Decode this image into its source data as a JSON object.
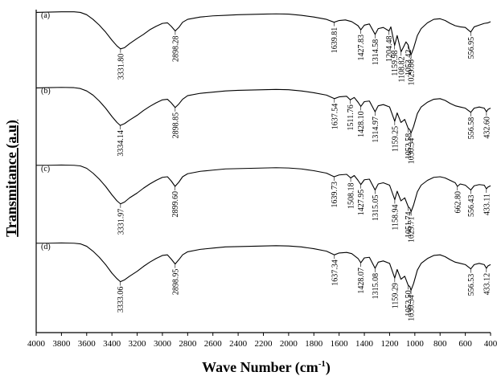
{
  "chart_data": {
    "type": "line",
    "xlabel": "Wave Number (cm",
    "xlabel_sup": "-1",
    "xlabel_end": ")",
    "ylabel": "Transmitance (a.u)",
    "xlim": [
      4000,
      400
    ],
    "x_reversed": true,
    "x_ticks": [
      4000,
      3800,
      3600,
      3400,
      3200,
      3000,
      2800,
      2600,
      2400,
      2200,
      2000,
      1800,
      1600,
      1400,
      1200,
      1000,
      800,
      600,
      400
    ],
    "ylim": [
      0,
      1
    ],
    "y_ticks_shown": false,
    "grid": false,
    "series": [
      {
        "name": "(a)",
        "points": [
          [
            4000,
            0.98
          ],
          [
            3900,
            0.985
          ],
          [
            3800,
            0.99
          ],
          [
            3700,
            0.99
          ],
          [
            3650,
            0.98
          ],
          [
            3600,
            0.94
          ],
          [
            3550,
            0.86
          ],
          [
            3500,
            0.76
          ],
          [
            3450,
            0.64
          ],
          [
            3400,
            0.5
          ],
          [
            3360,
            0.4
          ],
          [
            3331.8,
            0.35
          ],
          [
            3300,
            0.37
          ],
          [
            3260,
            0.44
          ],
          [
            3200,
            0.53
          ],
          [
            3150,
            0.6
          ],
          [
            3100,
            0.68
          ],
          [
            3050,
            0.74
          ],
          [
            3000,
            0.79
          ],
          [
            2960,
            0.8
          ],
          [
            2930,
            0.74
          ],
          [
            2898.28,
            0.66
          ],
          [
            2870,
            0.72
          ],
          [
            2840,
            0.81
          ],
          [
            2800,
            0.86
          ],
          [
            2700,
            0.9
          ],
          [
            2600,
            0.92
          ],
          [
            2500,
            0.93
          ],
          [
            2400,
            0.94
          ],
          [
            2300,
            0.945
          ],
          [
            2200,
            0.95
          ],
          [
            2100,
            0.955
          ],
          [
            2000,
            0.95
          ],
          [
            1900,
            0.93
          ],
          [
            1800,
            0.9
          ],
          [
            1700,
            0.86
          ],
          [
            1639.81,
            0.81
          ],
          [
            1600,
            0.84
          ],
          [
            1550,
            0.85
          ],
          [
            1500,
            0.82
          ],
          [
            1450,
            0.75
          ],
          [
            1427.83,
            0.68
          ],
          [
            1400,
            0.76
          ],
          [
            1360,
            0.78
          ],
          [
            1314.58,
            0.6
          ],
          [
            1290,
            0.7
          ],
          [
            1250,
            0.72
          ],
          [
            1204.48,
            0.66
          ],
          [
            1190,
            0.73
          ],
          [
            1159.98,
            0.41
          ],
          [
            1140,
            0.58
          ],
          [
            1108.82,
            0.3
          ],
          [
            1090,
            0.38
          ],
          [
            1070,
            0.47
          ],
          [
            1053.42,
            0.42
          ],
          [
            1040,
            0.3
          ],
          [
            1029.86,
            0.25
          ],
          [
            1010,
            0.36
          ],
          [
            980,
            0.58
          ],
          [
            950,
            0.7
          ],
          [
            900,
            0.8
          ],
          [
            850,
            0.86
          ],
          [
            800,
            0.87
          ],
          [
            760,
            0.84
          ],
          [
            720,
            0.79
          ],
          [
            680,
            0.75
          ],
          [
            640,
            0.73
          ],
          [
            600,
            0.72
          ],
          [
            556.95,
            0.64
          ],
          [
            530,
            0.73
          ],
          [
            490,
            0.76
          ],
          [
            450,
            0.79
          ],
          [
            420,
            0.8
          ],
          [
            400,
            0.82
          ]
        ],
        "peak_labels": [
          "3331.80",
          "2898.28",
          "1639.81",
          "1427.83",
          "1314.58",
          "1204.48",
          "1159.98",
          "1108.82",
          "1053.42",
          "1029.86",
          "556.95"
        ]
      },
      {
        "name": "(b)",
        "points": [
          [
            4000,
            0.98
          ],
          [
            3900,
            0.985
          ],
          [
            3800,
            0.99
          ],
          [
            3700,
            0.985
          ],
          [
            3650,
            0.97
          ],
          [
            3600,
            0.93
          ],
          [
            3550,
            0.86
          ],
          [
            3500,
            0.76
          ],
          [
            3450,
            0.64
          ],
          [
            3400,
            0.5
          ],
          [
            3360,
            0.4
          ],
          [
            3334.14,
            0.35
          ],
          [
            3300,
            0.38
          ],
          [
            3260,
            0.44
          ],
          [
            3200,
            0.52
          ],
          [
            3150,
            0.6
          ],
          [
            3100,
            0.67
          ],
          [
            3050,
            0.73
          ],
          [
            3000,
            0.78
          ],
          [
            2960,
            0.79
          ],
          [
            2930,
            0.73
          ],
          [
            2898.85,
            0.65
          ],
          [
            2870,
            0.71
          ],
          [
            2840,
            0.79
          ],
          [
            2800,
            0.85
          ],
          [
            2700,
            0.89
          ],
          [
            2600,
            0.91
          ],
          [
            2500,
            0.93
          ],
          [
            2400,
            0.94
          ],
          [
            2300,
            0.945
          ],
          [
            2200,
            0.95
          ],
          [
            2100,
            0.955
          ],
          [
            2000,
            0.95
          ],
          [
            1900,
            0.93
          ],
          [
            1800,
            0.9
          ],
          [
            1700,
            0.86
          ],
          [
            1637.54,
            0.8
          ],
          [
            1600,
            0.83
          ],
          [
            1540,
            0.84
          ],
          [
            1511.76,
            0.78
          ],
          [
            1480,
            0.82
          ],
          [
            1450,
            0.74
          ],
          [
            1428.1,
            0.67
          ],
          [
            1400,
            0.75
          ],
          [
            1360,
            0.76
          ],
          [
            1314.97,
            0.58
          ],
          [
            1290,
            0.68
          ],
          [
            1250,
            0.7
          ],
          [
            1200,
            0.66
          ],
          [
            1159.25,
            0.42
          ],
          [
            1140,
            0.56
          ],
          [
            1110,
            0.4
          ],
          [
            1080,
            0.45
          ],
          [
            1052.58,
            0.3
          ],
          [
            1040,
            0.28
          ],
          [
            1030.34,
            0.22
          ],
          [
            1010,
            0.33
          ],
          [
            980,
            0.55
          ],
          [
            950,
            0.66
          ],
          [
            900,
            0.74
          ],
          [
            850,
            0.79
          ],
          [
            800,
            0.8
          ],
          [
            760,
            0.77
          ],
          [
            720,
            0.72
          ],
          [
            680,
            0.68
          ],
          [
            640,
            0.66
          ],
          [
            600,
            0.64
          ],
          [
            556.58,
            0.57
          ],
          [
            530,
            0.64
          ],
          [
            490,
            0.66
          ],
          [
            450,
            0.64
          ],
          [
            432.6,
            0.58
          ],
          [
            420,
            0.62
          ],
          [
            400,
            0.64
          ]
        ],
        "peak_labels": [
          "3334.14",
          "2898.85",
          "1637.54",
          "1511.76",
          "1428.10",
          "1314.97",
          "1159.25",
          "1052.58",
          "1030.34",
          "556.58",
          "432.60"
        ]
      },
      {
        "name": "(c)",
        "points": [
          [
            4000,
            0.99
          ],
          [
            3900,
            0.99
          ],
          [
            3800,
            0.995
          ],
          [
            3700,
            0.99
          ],
          [
            3650,
            0.98
          ],
          [
            3600,
            0.94
          ],
          [
            3550,
            0.86
          ],
          [
            3500,
            0.76
          ],
          [
            3450,
            0.64
          ],
          [
            3400,
            0.5
          ],
          [
            3360,
            0.4
          ],
          [
            3331.97,
            0.35
          ],
          [
            3300,
            0.38
          ],
          [
            3260,
            0.45
          ],
          [
            3200,
            0.53
          ],
          [
            3150,
            0.61
          ],
          [
            3100,
            0.68
          ],
          [
            3050,
            0.74
          ],
          [
            3000,
            0.79
          ],
          [
            2960,
            0.8
          ],
          [
            2930,
            0.73
          ],
          [
            2899.6,
            0.64
          ],
          [
            2870,
            0.71
          ],
          [
            2840,
            0.8
          ],
          [
            2800,
            0.85
          ],
          [
            2700,
            0.89
          ],
          [
            2600,
            0.91
          ],
          [
            2500,
            0.93
          ],
          [
            2400,
            0.935
          ],
          [
            2300,
            0.94
          ],
          [
            2200,
            0.945
          ],
          [
            2100,
            0.95
          ],
          [
            2000,
            0.945
          ],
          [
            1900,
            0.93
          ],
          [
            1800,
            0.9
          ],
          [
            1700,
            0.86
          ],
          [
            1639.73,
            0.8
          ],
          [
            1600,
            0.83
          ],
          [
            1540,
            0.84
          ],
          [
            1508.18,
            0.78
          ],
          [
            1480,
            0.82
          ],
          [
            1450,
            0.74
          ],
          [
            1427.95,
            0.67
          ],
          [
            1400,
            0.75
          ],
          [
            1360,
            0.76
          ],
          [
            1315.05,
            0.58
          ],
          [
            1290,
            0.68
          ],
          [
            1250,
            0.7
          ],
          [
            1200,
            0.66
          ],
          [
            1158.94,
            0.42
          ],
          [
            1140,
            0.56
          ],
          [
            1110,
            0.4
          ],
          [
            1080,
            0.45
          ],
          [
            1051.74,
            0.3
          ],
          [
            1040,
            0.28
          ],
          [
            1029.71,
            0.22
          ],
          [
            1010,
            0.33
          ],
          [
            980,
            0.55
          ],
          [
            950,
            0.66
          ],
          [
            900,
            0.74
          ],
          [
            850,
            0.79
          ],
          [
            800,
            0.8
          ],
          [
            760,
            0.78
          ],
          [
            720,
            0.74
          ],
          [
            680,
            0.7
          ],
          [
            662.8,
            0.64
          ],
          [
            640,
            0.68
          ],
          [
            600,
            0.66
          ],
          [
            556.43,
            0.58
          ],
          [
            530,
            0.65
          ],
          [
            490,
            0.67
          ],
          [
            450,
            0.66
          ],
          [
            433.11,
            0.6
          ],
          [
            420,
            0.63
          ],
          [
            400,
            0.65
          ]
        ],
        "peak_labels": [
          "3331.97",
          "2899.60",
          "1639.73",
          "1508.18",
          "1427.95",
          "1315.05",
          "1158.94",
          "1051.74",
          "1029.71",
          "662.80",
          "556.43",
          "433.11"
        ]
      },
      {
        "name": "(d)",
        "points": [
          [
            4000,
            0.99
          ],
          [
            3900,
            0.99
          ],
          [
            3800,
            0.995
          ],
          [
            3700,
            0.99
          ],
          [
            3650,
            0.98
          ],
          [
            3600,
            0.94
          ],
          [
            3550,
            0.86
          ],
          [
            3500,
            0.76
          ],
          [
            3450,
            0.64
          ],
          [
            3400,
            0.5
          ],
          [
            3360,
            0.41
          ],
          [
            3333.06,
            0.36
          ],
          [
            3300,
            0.39
          ],
          [
            3260,
            0.45
          ],
          [
            3200,
            0.53
          ],
          [
            3150,
            0.61
          ],
          [
            3100,
            0.68
          ],
          [
            3050,
            0.74
          ],
          [
            3000,
            0.79
          ],
          [
            2960,
            0.8
          ],
          [
            2930,
            0.73
          ],
          [
            2898.95,
            0.65
          ],
          [
            2870,
            0.72
          ],
          [
            2840,
            0.8
          ],
          [
            2800,
            0.85
          ],
          [
            2700,
            0.89
          ],
          [
            2600,
            0.91
          ],
          [
            2500,
            0.93
          ],
          [
            2400,
            0.935
          ],
          [
            2300,
            0.94
          ],
          [
            2200,
            0.945
          ],
          [
            2100,
            0.95
          ],
          [
            2000,
            0.945
          ],
          [
            1900,
            0.93
          ],
          [
            1800,
            0.9
          ],
          [
            1700,
            0.86
          ],
          [
            1637.34,
            0.8
          ],
          [
            1600,
            0.83
          ],
          [
            1540,
            0.84
          ],
          [
            1500,
            0.82
          ],
          [
            1450,
            0.74
          ],
          [
            1428.07,
            0.67
          ],
          [
            1400,
            0.75
          ],
          [
            1360,
            0.76
          ],
          [
            1315.08,
            0.58
          ],
          [
            1290,
            0.68
          ],
          [
            1250,
            0.7
          ],
          [
            1200,
            0.66
          ],
          [
            1159.29,
            0.42
          ],
          [
            1140,
            0.56
          ],
          [
            1110,
            0.4
          ],
          [
            1080,
            0.45
          ],
          [
            1052.5,
            0.3
          ],
          [
            1040,
            0.28
          ],
          [
            1030.34,
            0.22
          ],
          [
            1010,
            0.33
          ],
          [
            980,
            0.55
          ],
          [
            950,
            0.66
          ],
          [
            900,
            0.74
          ],
          [
            850,
            0.79
          ],
          [
            800,
            0.8
          ],
          [
            760,
            0.77
          ],
          [
            720,
            0.72
          ],
          [
            680,
            0.68
          ],
          [
            640,
            0.66
          ],
          [
            600,
            0.64
          ],
          [
            556.53,
            0.57
          ],
          [
            530,
            0.64
          ],
          [
            490,
            0.66
          ],
          [
            450,
            0.64
          ],
          [
            433.12,
            0.58
          ],
          [
            420,
            0.62
          ],
          [
            400,
            0.64
          ]
        ],
        "peak_labels": [
          "3333.06",
          "2898.95",
          "1637.34",
          "1428.07",
          "1315.08",
          "1159.29",
          "1052.50",
          "1030.34",
          "556.53",
          "433.12"
        ]
      }
    ]
  }
}
